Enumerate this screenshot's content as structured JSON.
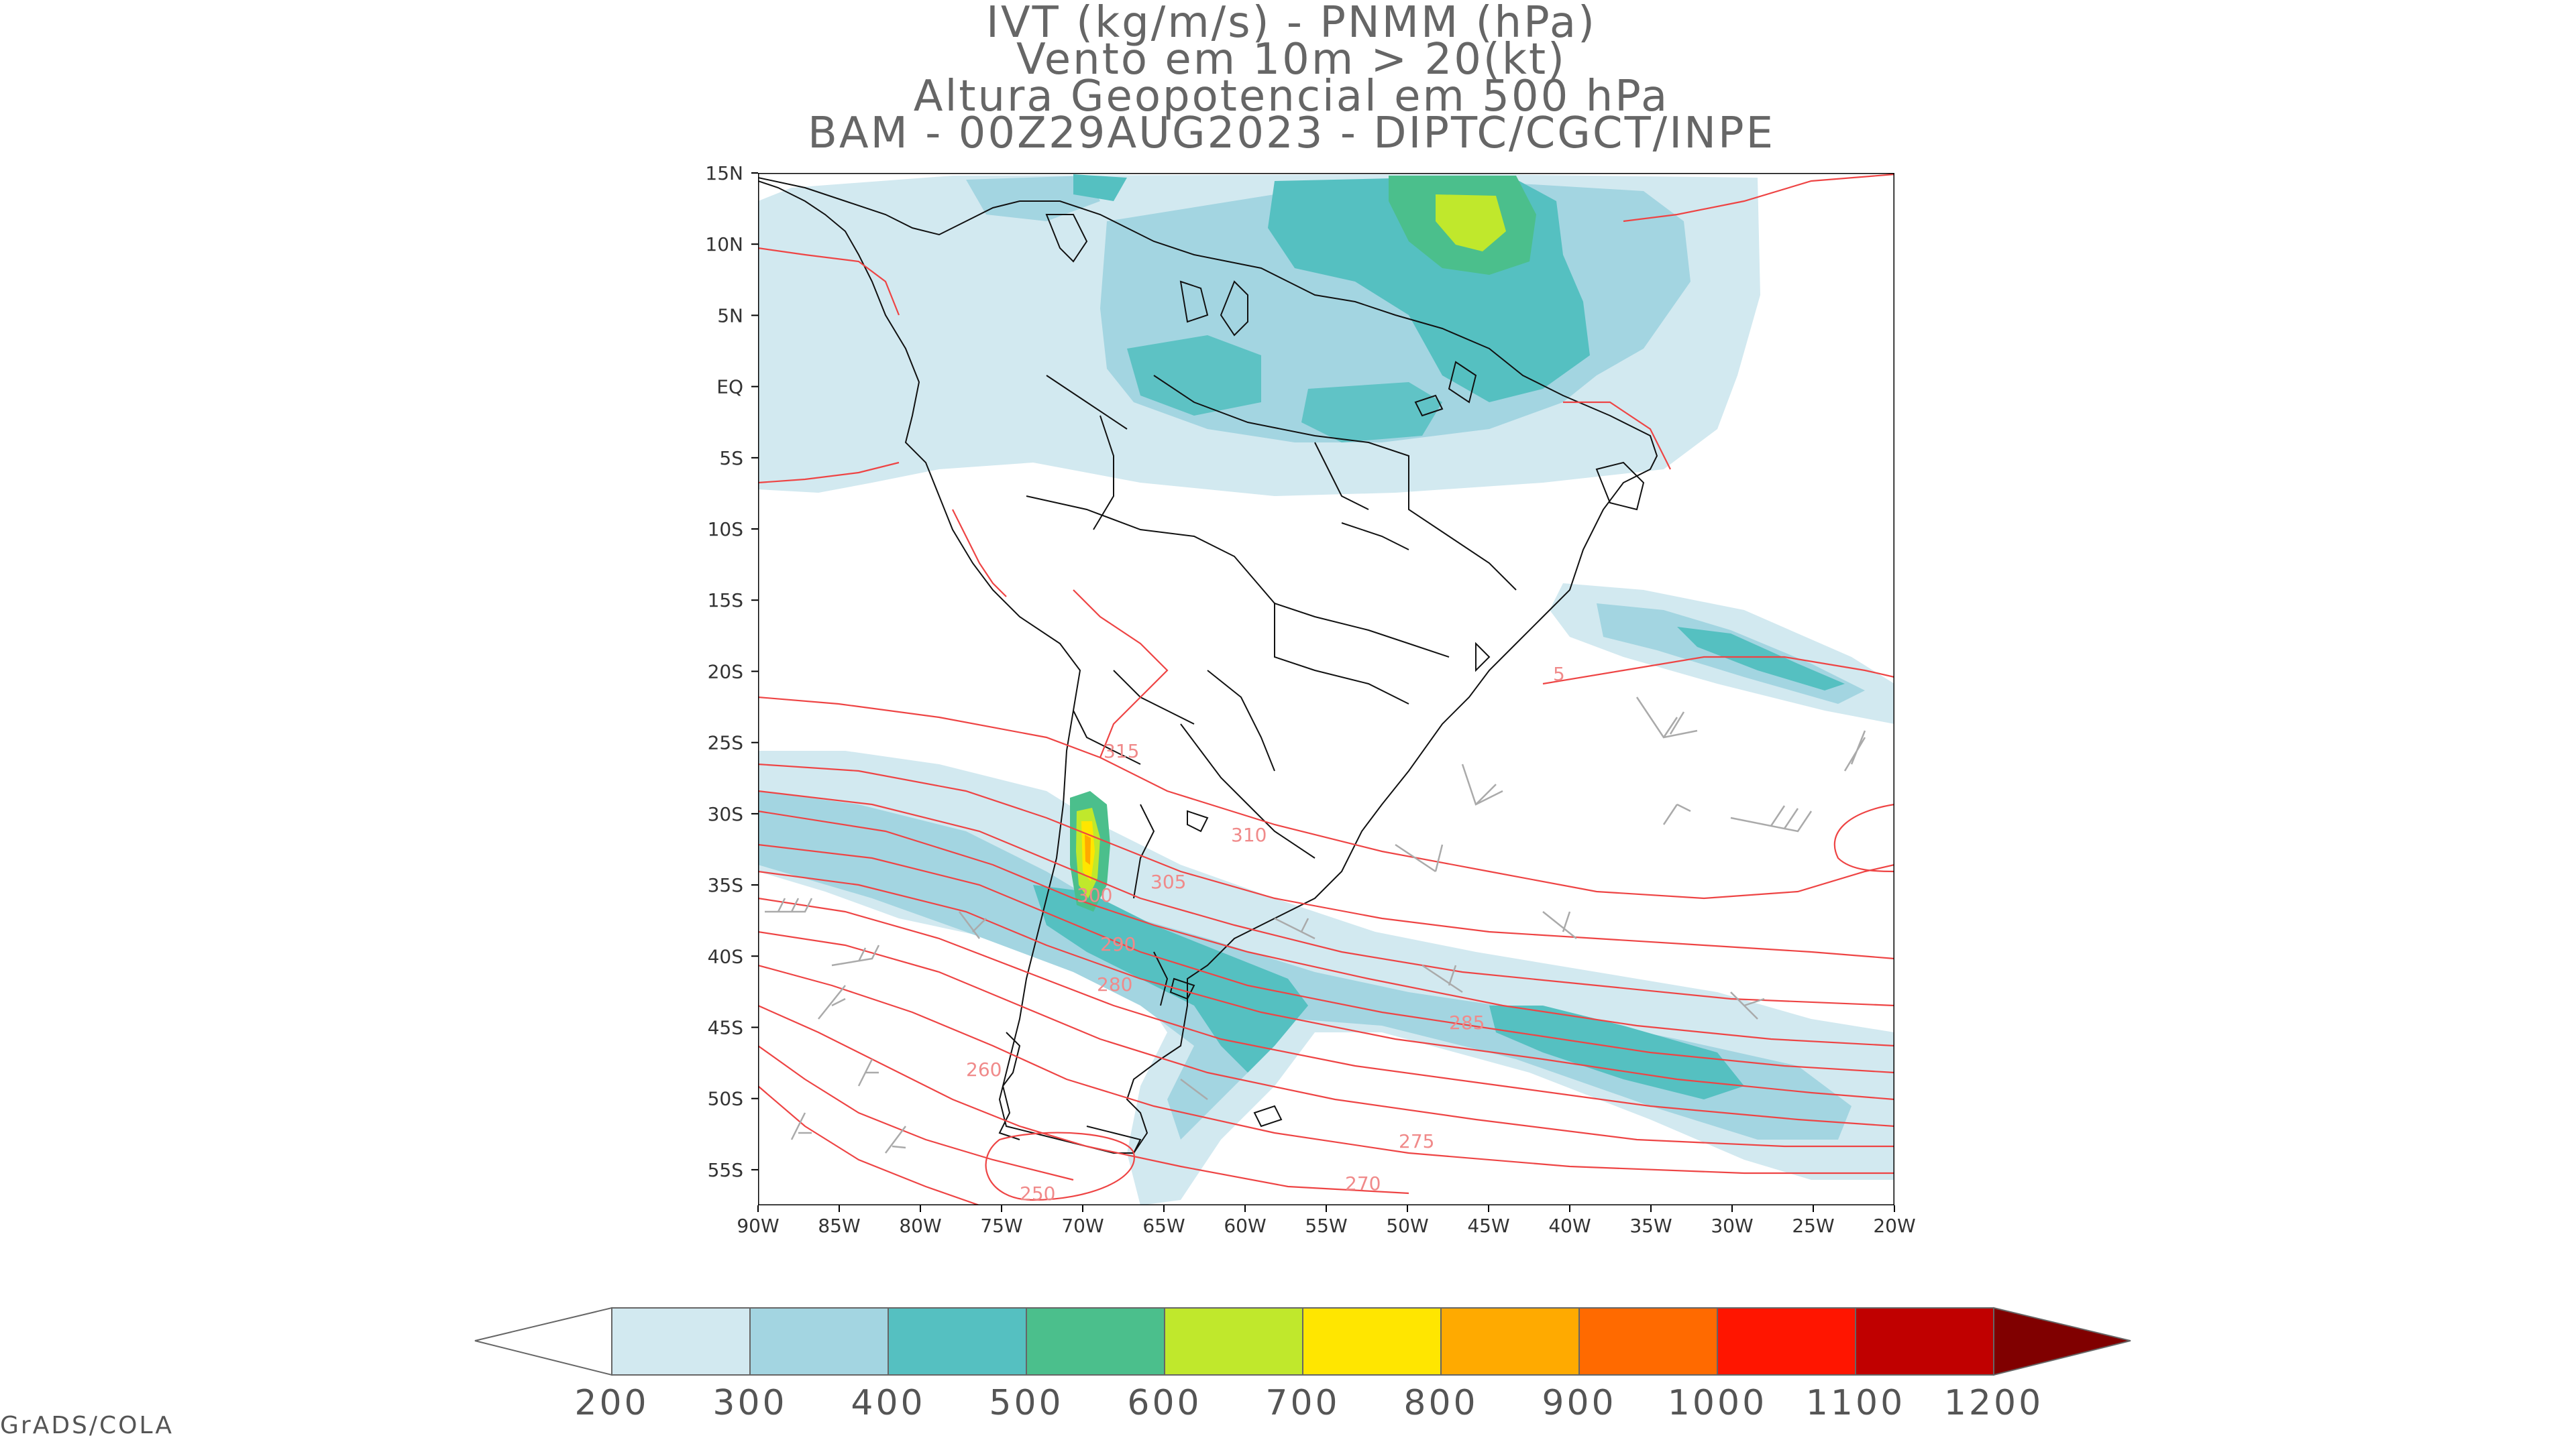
{
  "title": {
    "line1": "IVT (kg/m/s) - PNMM (hPa)",
    "line2": "Vento em 10m > 20(kt)",
    "line3": "Altura Geopotencial em 500 hPa",
    "line4": "BAM - 00Z29AUG2023 - DIPTC/CGCT/INPE"
  },
  "map": {
    "lon_range": [
      -90,
      -20
    ],
    "lat_range": [
      -57.5,
      15
    ],
    "lon_ticks": [
      "90W",
      "85W",
      "80W",
      "75W",
      "70W",
      "65W",
      "60W",
      "55W",
      "50W",
      "45W",
      "40W",
      "35W",
      "30W",
      "25W",
      "20W"
    ],
    "lat_ticks": [
      "15N",
      "10N",
      "5N",
      "EQ",
      "5S",
      "10S",
      "15S",
      "20S",
      "25S",
      "30S",
      "35S",
      "40S",
      "45S",
      "50S",
      "55S"
    ],
    "contour_labels": [
      "315",
      "310",
      "305",
      "300",
      "290",
      "280",
      "285",
      "275",
      "270",
      "260",
      "250",
      "5"
    ]
  },
  "colorbar": {
    "labels": [
      "200",
      "300",
      "400",
      "500",
      "600",
      "700",
      "800",
      "900",
      "1000",
      "1100",
      "1200"
    ],
    "colors": [
      "#d2e9f0",
      "#a3d5e1",
      "#55c0c1",
      "#4bbf8c",
      "#c0e82c",
      "#ffe600",
      "#ffaa00",
      "#ff6a00",
      "#ff1500",
      "#c00000",
      "#800000"
    ]
  },
  "credit": "GrADS/COLA",
  "colors": {
    "contour": "#ee4444",
    "coast": "#111111",
    "wind_barb": "#aaaaaa",
    "frame": "#000000"
  }
}
